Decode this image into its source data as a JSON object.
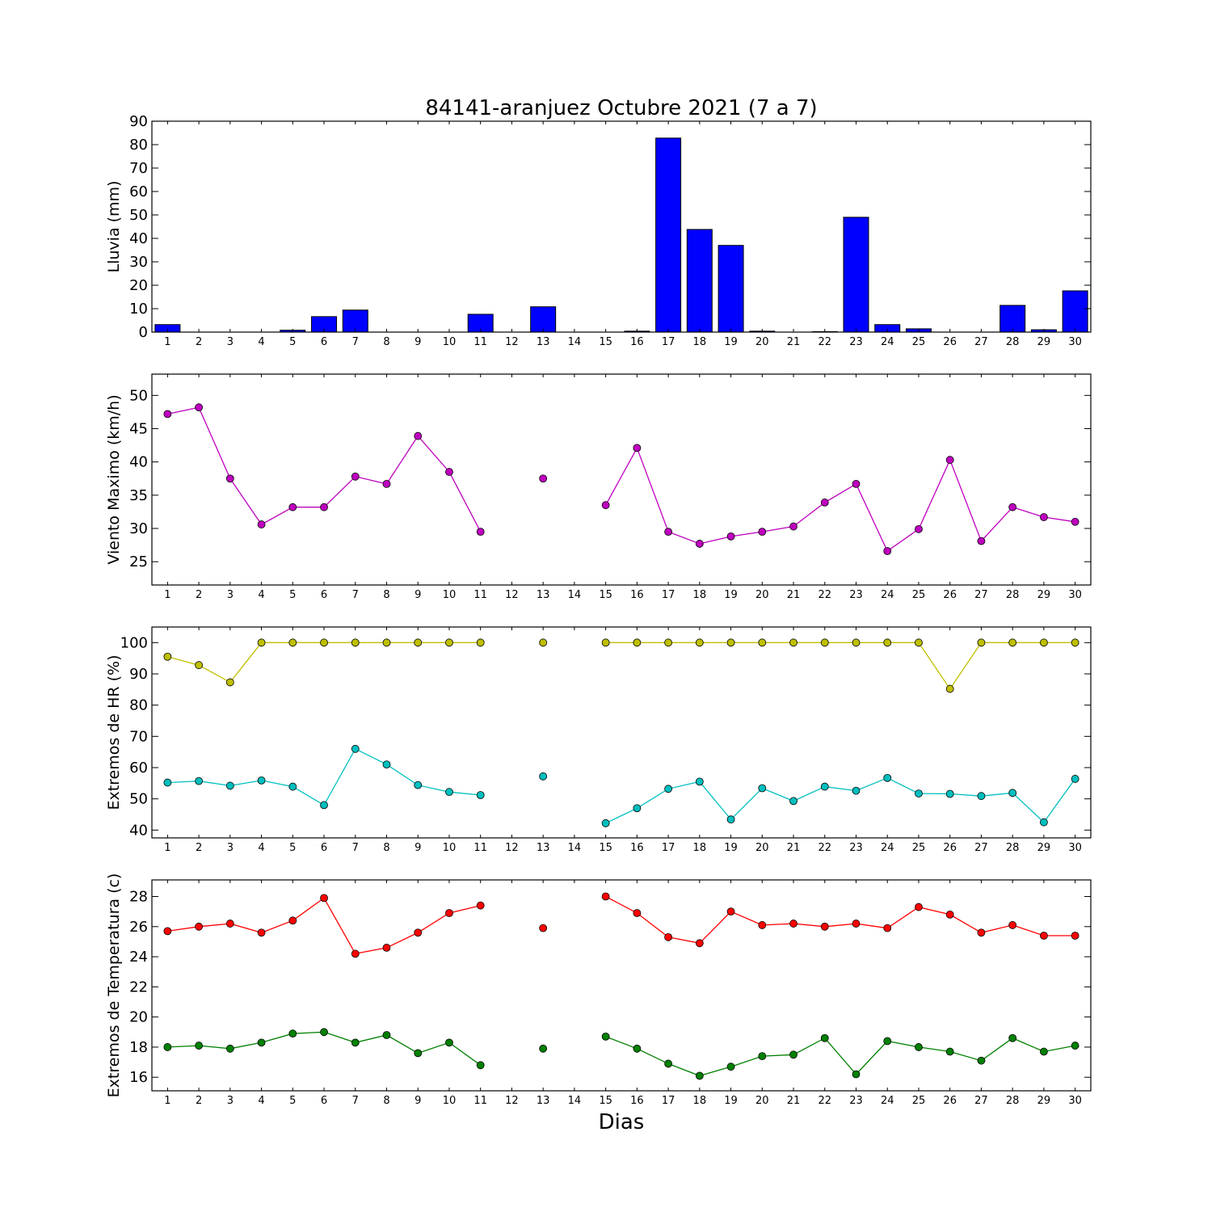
{
  "figure": {
    "title": "84141-aranjuez Octubre 2021  (7 a 7)",
    "xlabel": "Dias"
  },
  "chart_data": [
    {
      "type": "bar",
      "name": "lluvia",
      "ylabel": "Lluvia (mm)",
      "ylim": [
        0,
        90
      ],
      "yticks": [
        0,
        10,
        20,
        30,
        40,
        50,
        60,
        70,
        80,
        90
      ],
      "categories": [
        1,
        2,
        3,
        4,
        5,
        6,
        7,
        8,
        9,
        10,
        11,
        12,
        13,
        14,
        15,
        16,
        17,
        18,
        19,
        20,
        21,
        22,
        23,
        24,
        25,
        26,
        27,
        28,
        29,
        30
      ],
      "values": [
        3.2,
        0,
        0,
        0,
        0.8,
        6.6,
        9.4,
        0,
        0,
        0,
        7.6,
        0,
        10.8,
        0,
        0,
        0.4,
        82.8,
        43.8,
        37,
        0.4,
        0,
        0.2,
        49,
        3.2,
        1.4,
        0,
        0,
        11.4,
        1,
        17.6
      ],
      "color": "#0000ff",
      "grid": false
    },
    {
      "type": "line",
      "name": "viento",
      "ylabel": "Viento Maximo (km/h)",
      "ylim": [
        21.5,
        53.2
      ],
      "yticks": [
        25,
        30,
        35,
        40,
        45,
        50
      ],
      "categories": [
        1,
        2,
        3,
        4,
        5,
        6,
        7,
        8,
        9,
        10,
        11,
        12,
        13,
        14,
        15,
        16,
        17,
        18,
        19,
        20,
        21,
        22,
        23,
        24,
        25,
        26,
        27,
        28,
        29,
        30
      ],
      "series": [
        {
          "values": [
            47.2,
            48.2,
            37.5,
            30.6,
            33.2,
            33.2,
            37.8,
            36.7,
            43.9,
            38.5,
            29.5,
            null,
            37.5,
            null,
            33.5,
            42.1,
            29.5,
            27.7,
            28.8,
            29.5,
            30.3,
            33.9,
            36.7,
            26.6,
            29.9,
            40.3,
            28.1,
            33.2,
            31.7,
            31
          ],
          "color": "#bf00bf"
        }
      ],
      "grid": false
    },
    {
      "type": "line",
      "name": "humedad",
      "ylabel": "Extremos de HR (%)",
      "ylim": [
        37.5,
        105
      ],
      "yticks": [
        40,
        50,
        60,
        70,
        80,
        90,
        100
      ],
      "categories": [
        1,
        2,
        3,
        4,
        5,
        6,
        7,
        8,
        9,
        10,
        11,
        12,
        13,
        14,
        15,
        16,
        17,
        18,
        19,
        20,
        21,
        22,
        23,
        24,
        25,
        26,
        27,
        28,
        29,
        30
      ],
      "series": [
        {
          "values": [
            95.5,
            92.8,
            87.3,
            100,
            100,
            100,
            100,
            100,
            100,
            100,
            100,
            null,
            100,
            null,
            100,
            100,
            100,
            100,
            100,
            100,
            100,
            100,
            100,
            100,
            100,
            85.2,
            100,
            100,
            100,
            100
          ],
          "color": "#bfbf00"
        },
        {
          "values": [
            55.2,
            55.7,
            54.2,
            55.9,
            53.9,
            48,
            66,
            61,
            54.4,
            52.2,
            51.2,
            null,
            57.2,
            null,
            42.2,
            47,
            53.2,
            55.5,
            43.4,
            53.4,
            49.3,
            53.9,
            52.6,
            56.7,
            51.7,
            51.6,
            50.9,
            51.9,
            42.5,
            56.4
          ],
          "color": "#00bfbf"
        }
      ],
      "grid": false
    },
    {
      "type": "line",
      "name": "temperatura",
      "ylabel": "Extremos de Temperatura (c)",
      "ylim": [
        15.1,
        29.1
      ],
      "yticks": [
        16,
        18,
        20,
        22,
        24,
        26,
        28
      ],
      "categories": [
        1,
        2,
        3,
        4,
        5,
        6,
        7,
        8,
        9,
        10,
        11,
        12,
        13,
        14,
        15,
        16,
        17,
        18,
        19,
        20,
        21,
        22,
        23,
        24,
        25,
        26,
        27,
        28,
        29,
        30
      ],
      "series": [
        {
          "values": [
            25.7,
            26,
            26.2,
            25.6,
            26.4,
            27.9,
            24.2,
            24.6,
            25.6,
            26.9,
            27.4,
            null,
            25.9,
            null,
            28,
            26.9,
            25.3,
            24.9,
            27,
            26.1,
            26.2,
            26,
            26.2,
            25.9,
            27.3,
            26.8,
            25.6,
            26.1,
            25.4,
            25.4
          ],
          "color": "#ff0000"
        },
        {
          "values": [
            18,
            18.1,
            17.9,
            18.3,
            18.9,
            19,
            18.3,
            18.8,
            17.6,
            18.3,
            16.8,
            null,
            17.9,
            null,
            18.7,
            17.9,
            16.9,
            16.1,
            16.7,
            17.4,
            17.5,
            18.6,
            16.2,
            18.4,
            18,
            17.7,
            17.1,
            18.6,
            17.7,
            18.1
          ],
          "color": "#008000"
        }
      ],
      "grid": false
    }
  ]
}
